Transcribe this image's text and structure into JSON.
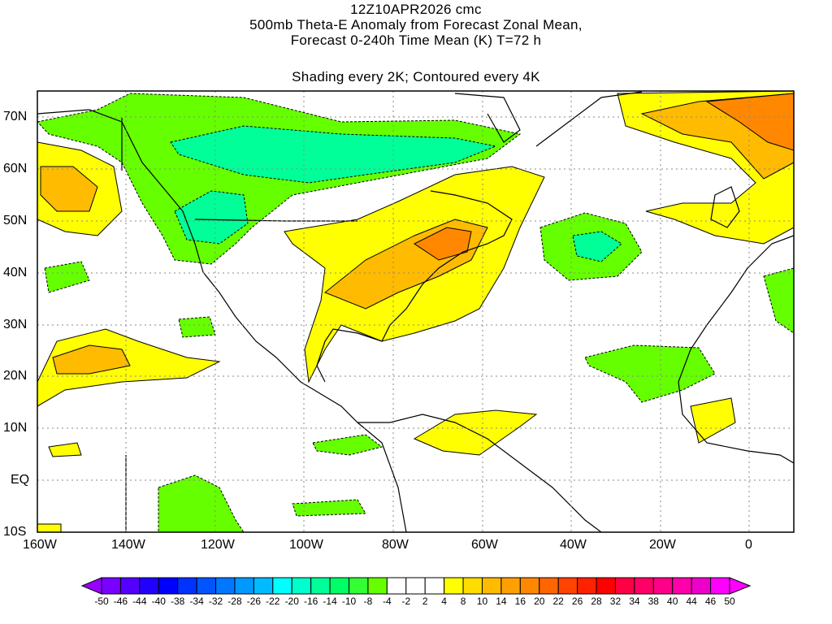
{
  "title": {
    "line1": "12Z10APR2026 cmc",
    "line2": "500mb Theta-E Anomaly from Forecast Zonal Mean,",
    "line3": "Forecast 0-240h Time Mean (K) T=72 h",
    "line4": "Shading every 2K; Contoured every 4K"
  },
  "axes": {
    "lat_labels": [
      "70N",
      "60N",
      "50N",
      "40N",
      "30N",
      "20N",
      "10N",
      "EQ",
      "10S"
    ],
    "lon_labels": [
      "160W",
      "140W",
      "120W",
      "100W",
      "80W",
      "60W",
      "40W",
      "20W",
      "0"
    ]
  },
  "colorbar": {
    "labels": [
      "-50",
      "-46",
      "-44",
      "-40",
      "-38",
      "-34",
      "-32",
      "-28",
      "-26",
      "-22",
      "-20",
      "-16",
      "-14",
      "-10",
      "-8",
      "-4",
      "-2",
      "2",
      "4",
      "8",
      "10",
      "14",
      "16",
      "20",
      "22",
      "26",
      "28",
      "32",
      "34",
      "38",
      "40",
      "44",
      "46",
      "50"
    ],
    "colors": [
      "#9900ff",
      "#7a00ff",
      "#5500ff",
      "#2200ff",
      "#0000ff",
      "#0033ff",
      "#0055ff",
      "#0077ff",
      "#0099ff",
      "#00bbff",
      "#00ffff",
      "#00ffcc",
      "#00ff99",
      "#00ff66",
      "#33ff33",
      "#66ff00",
      "#ffffff",
      "#ffffff",
      "#ffffff",
      "#ffff00",
      "#ffdd00",
      "#ffbb00",
      "#ffa000",
      "#ff8800",
      "#ff6600",
      "#ff4400",
      "#ff2200",
      "#ff0000",
      "#ff0044",
      "#ff0066",
      "#ff0088",
      "#ff00aa",
      "#ee00cc",
      "#ff00ff",
      "#ff00ff"
    ]
  }
}
